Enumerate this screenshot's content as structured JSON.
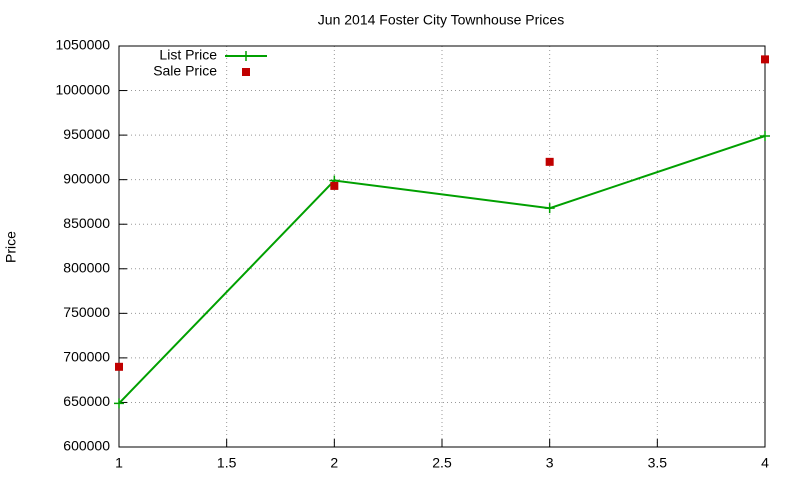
{
  "chart_data": {
    "type": "line",
    "title": "Jun 2014 Foster City Townhouse Prices",
    "y_label": "Price",
    "x": [
      1,
      2,
      3,
      4
    ],
    "series": [
      {
        "name": "List Price",
        "color": "#00a000",
        "style": "linespoints",
        "values": [
          649000,
          899000,
          868000,
          949000
        ]
      },
      {
        "name": "Sale Price",
        "color": "#c00000",
        "style": "points",
        "values": [
          690000,
          893000,
          920000,
          1035000
        ]
      }
    ],
    "xlim": [
      1,
      4
    ],
    "xticks": [
      1,
      1.5,
      2,
      2.5,
      3,
      3.5,
      4
    ],
    "ylim": [
      600000,
      1050000
    ],
    "yticks": [
      600000,
      650000,
      700000,
      750000,
      800000,
      850000,
      900000,
      950000,
      1000000,
      1050000
    ],
    "grid": true,
    "legend": "top-left"
  }
}
